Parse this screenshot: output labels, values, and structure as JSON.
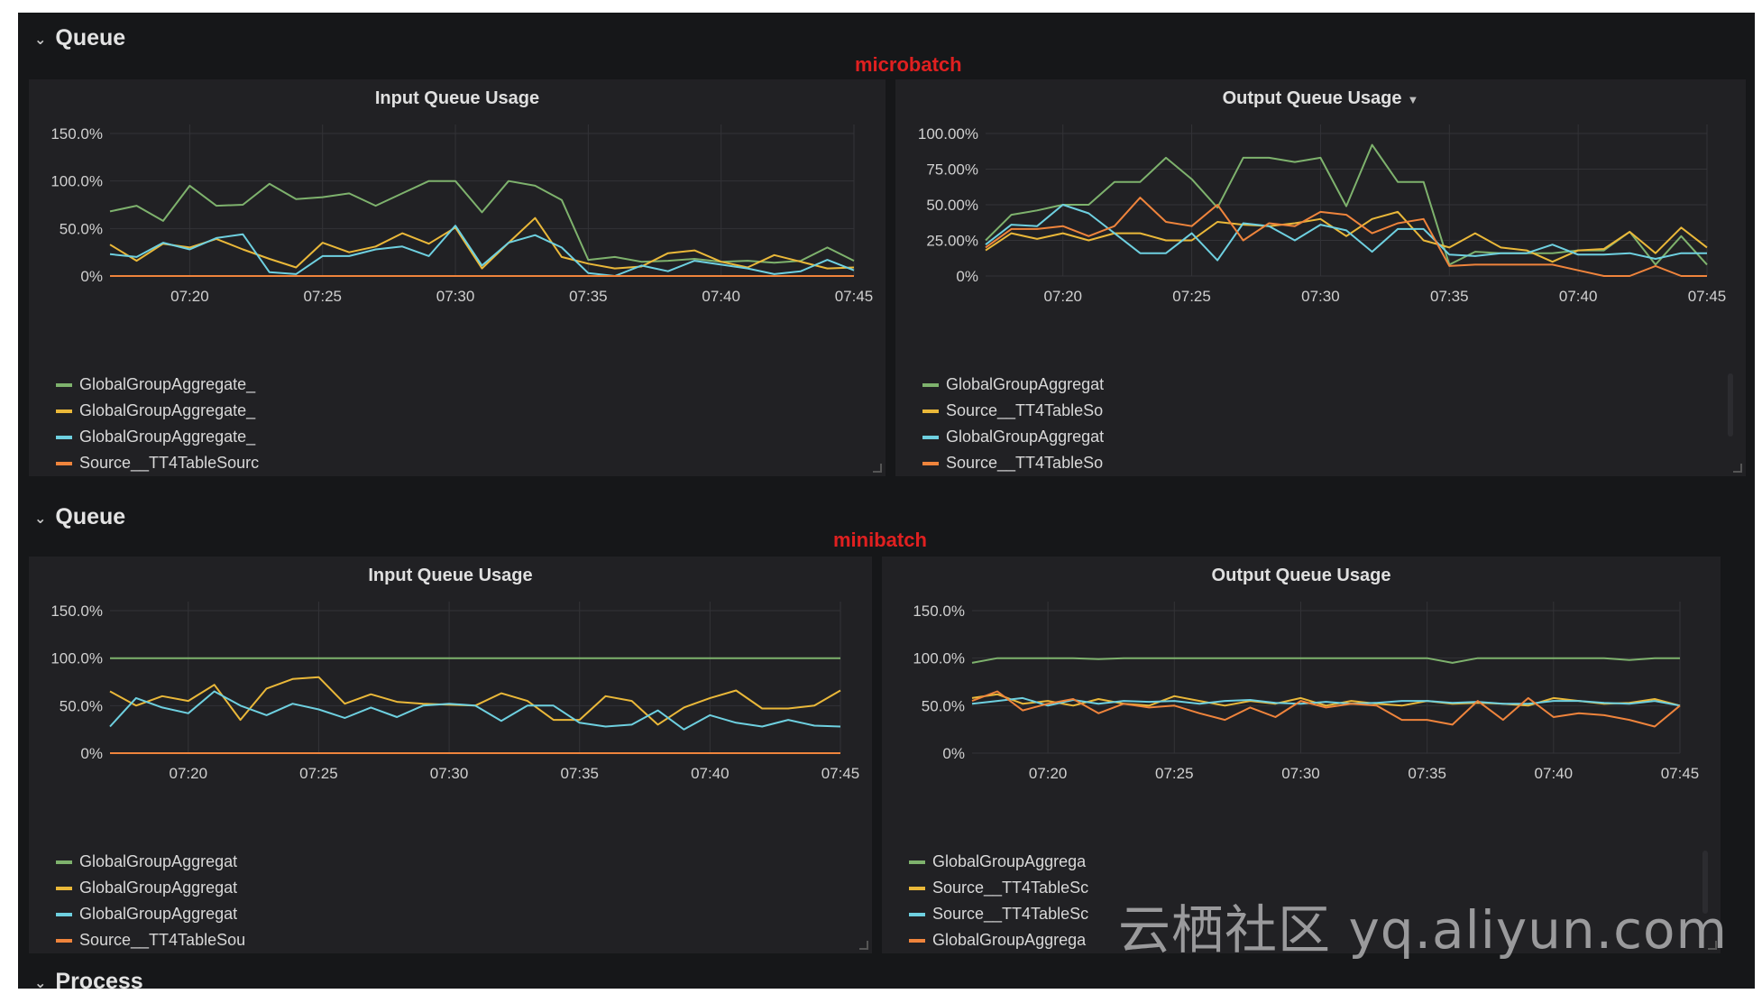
{
  "rows": [
    {
      "title": "Queue",
      "annotation": "microbatch"
    },
    {
      "title": "Queue",
      "annotation": "minibatch"
    },
    {
      "title": "Process"
    }
  ],
  "colors": {
    "green": "#7eb26d",
    "yellow": "#eab839",
    "blue": "#6ed0e0",
    "orange": "#ef843c",
    "background": "#161719",
    "panel": "#212124",
    "annotation": "#e02020"
  },
  "watermark": "云栖社区 yq.aliyun.com",
  "icons": {
    "collapse": "chevron-down-icon",
    "panel_menu": "caret-down-icon"
  },
  "panels": [
    {
      "title": "Input Queue Usage",
      "has_menu_caret": false,
      "legend": [
        {
          "label": "GlobalGroupAggregate_",
          "color": "#7eb26d"
        },
        {
          "label": "GlobalGroupAggregate_",
          "color": "#eab839"
        },
        {
          "label": "GlobalGroupAggregate_",
          "color": "#6ed0e0"
        },
        {
          "label": "Source__TT4TableSourc",
          "color": "#ef843c"
        }
      ]
    },
    {
      "title": "Output Queue Usage",
      "has_menu_caret": true,
      "legend": [
        {
          "label": "GlobalGroupAggregat",
          "color": "#7eb26d"
        },
        {
          "label": "Source__TT4TableSo",
          "color": "#eab839"
        },
        {
          "label": "GlobalGroupAggregat",
          "color": "#6ed0e0"
        },
        {
          "label": "Source__TT4TableSo",
          "color": "#ef843c"
        }
      ]
    },
    {
      "title": "Input Queue Usage",
      "has_menu_caret": false,
      "legend": [
        {
          "label": "GlobalGroupAggregat",
          "color": "#7eb26d"
        },
        {
          "label": "GlobalGroupAggregat",
          "color": "#eab839"
        },
        {
          "label": "GlobalGroupAggregat",
          "color": "#6ed0e0"
        },
        {
          "label": "Source__TT4TableSou",
          "color": "#ef843c"
        }
      ]
    },
    {
      "title": "Output Queue Usage",
      "has_menu_caret": false,
      "legend": [
        {
          "label": "GlobalGroupAggrega",
          "color": "#7eb26d"
        },
        {
          "label": "Source__TT4TableSc",
          "color": "#eab839"
        },
        {
          "label": "Source__TT4TableSc",
          "color": "#6ed0e0"
        },
        {
          "label": "GlobalGroupAggrega",
          "color": "#ef843c"
        }
      ]
    }
  ],
  "chart_data": [
    {
      "type": "line",
      "title": "Input Queue Usage",
      "x": [
        "07:17",
        "07:18",
        "07:19",
        "07:20",
        "07:21",
        "07:22",
        "07:23",
        "07:24",
        "07:25",
        "07:26",
        "07:27",
        "07:28",
        "07:29",
        "07:30",
        "07:31",
        "07:32",
        "07:33",
        "07:34",
        "07:35",
        "07:36",
        "07:37",
        "07:38",
        "07:39",
        "07:40",
        "07:41",
        "07:42",
        "07:43",
        "07:44",
        "07:45"
      ],
      "xticks": [
        "07:20",
        "07:25",
        "07:30",
        "07:35",
        "07:40",
        "07:45"
      ],
      "yticks": [
        "0%",
        "50.0%",
        "100.0%",
        "150.0%"
      ],
      "ylim": [
        0,
        150
      ],
      "grid": true,
      "legend_position": "bottom-left",
      "series": [
        {
          "name": "GlobalGroupAggregate_",
          "color": "#7eb26d",
          "values": [
            68,
            74,
            58,
            95,
            74,
            75,
            97,
            81,
            83,
            87,
            74,
            87,
            100,
            100,
            67,
            100,
            95,
            80,
            17,
            20,
            15,
            16,
            18,
            15,
            16,
            14,
            16,
            30,
            16
          ]
        },
        {
          "name": "GlobalGroupAggregate_",
          "color": "#eab839",
          "values": [
            33,
            16,
            34,
            30,
            39,
            28,
            18,
            9,
            35,
            25,
            31,
            45,
            34,
            51,
            8,
            35,
            61,
            20,
            13,
            8,
            10,
            24,
            27,
            15,
            9,
            22,
            15,
            8,
            9
          ]
        },
        {
          "name": "GlobalGroupAggregate_",
          "color": "#6ed0e0",
          "values": [
            23,
            20,
            35,
            28,
            40,
            44,
            4,
            2,
            21,
            21,
            28,
            31,
            21,
            53,
            11,
            35,
            43,
            30,
            3,
            0,
            11,
            5,
            16,
            12,
            8,
            2,
            5,
            17,
            6
          ]
        },
        {
          "name": "Source__TT4TableSourc",
          "color": "#ef843c",
          "values": [
            0,
            0,
            0,
            0,
            0,
            0,
            0,
            0,
            0,
            0,
            0,
            0,
            0,
            0,
            0,
            0,
            0,
            0,
            0,
            0,
            0,
            0,
            0,
            0,
            0,
            0,
            0,
            0,
            0
          ]
        }
      ]
    },
    {
      "type": "line",
      "title": "Output Queue Usage",
      "x": [
        "07:17",
        "07:18",
        "07:19",
        "07:20",
        "07:21",
        "07:22",
        "07:23",
        "07:24",
        "07:25",
        "07:26",
        "07:27",
        "07:28",
        "07:29",
        "07:30",
        "07:31",
        "07:32",
        "07:33",
        "07:34",
        "07:35",
        "07:36",
        "07:37",
        "07:38",
        "07:39",
        "07:40",
        "07:41",
        "07:42",
        "07:43",
        "07:44",
        "07:45"
      ],
      "xticks": [
        "07:20",
        "07:25",
        "07:30",
        "07:35",
        "07:40",
        "07:45"
      ],
      "yticks": [
        "0%",
        "25.00%",
        "50.00%",
        "75.00%",
        "100.00%"
      ],
      "ylim": [
        0,
        100
      ],
      "grid": true,
      "legend_position": "bottom-left",
      "series": [
        {
          "name": "GlobalGroupAggregat",
          "color": "#7eb26d",
          "values": [
            25,
            43,
            46,
            50,
            50,
            66,
            66,
            83,
            68,
            48,
            83,
            83,
            80,
            83,
            49,
            92,
            66,
            66,
            8,
            17,
            16,
            16,
            16,
            18,
            18,
            31,
            8,
            28,
            8
          ]
        },
        {
          "name": "Source__TT4TableSo",
          "color": "#eab839",
          "values": [
            18,
            30,
            26,
            30,
            25,
            30,
            30,
            25,
            25,
            38,
            36,
            35,
            37,
            40,
            28,
            40,
            45,
            25,
            20,
            30,
            20,
            18,
            10,
            18,
            19,
            31,
            16,
            34,
            20
          ]
        },
        {
          "name": "GlobalGroupAggregat",
          "color": "#6ed0e0",
          "values": [
            22,
            36,
            35,
            50,
            44,
            30,
            16,
            16,
            30,
            11,
            37,
            35,
            25,
            36,
            32,
            17,
            33,
            33,
            15,
            14,
            16,
            16,
            22,
            15,
            15,
            16,
            12,
            16,
            16
          ]
        },
        {
          "name": "Source__TT4TableSo",
          "color": "#ef843c",
          "values": [
            20,
            33,
            33,
            35,
            28,
            35,
            55,
            38,
            35,
            50,
            25,
            37,
            35,
            45,
            43,
            30,
            37,
            40,
            7,
            8,
            8,
            8,
            8,
            4,
            0,
            0,
            7,
            0,
            0
          ]
        }
      ]
    },
    {
      "type": "line",
      "title": "Input Queue Usage",
      "x": [
        "07:17",
        "07:18",
        "07:19",
        "07:20",
        "07:21",
        "07:22",
        "07:23",
        "07:24",
        "07:25",
        "07:26",
        "07:27",
        "07:28",
        "07:29",
        "07:30",
        "07:31",
        "07:32",
        "07:33",
        "07:34",
        "07:35",
        "07:36",
        "07:37",
        "07:38",
        "07:39",
        "07:40",
        "07:41",
        "07:42",
        "07:43",
        "07:44",
        "07:45"
      ],
      "xticks": [
        "07:20",
        "07:25",
        "07:30",
        "07:35",
        "07:40",
        "07:45"
      ],
      "yticks": [
        "0%",
        "50.0%",
        "100.0%",
        "150.0%"
      ],
      "ylim": [
        0,
        150
      ],
      "grid": true,
      "legend_position": "bottom-left",
      "series": [
        {
          "name": "GlobalGroupAggregat",
          "color": "#7eb26d",
          "values": [
            100,
            100,
            100,
            100,
            100,
            100,
            100,
            100,
            100,
            100,
            100,
            100,
            100,
            100,
            100,
            100,
            100,
            100,
            100,
            100,
            100,
            100,
            100,
            100,
            100,
            100,
            100,
            100,
            100
          ]
        },
        {
          "name": "GlobalGroupAggregat",
          "color": "#eab839",
          "values": [
            65,
            50,
            60,
            55,
            72,
            35,
            68,
            78,
            80,
            52,
            62,
            54,
            52,
            51,
            50,
            63,
            55,
            35,
            35,
            60,
            55,
            30,
            48,
            58,
            66,
            47,
            47,
            50,
            66
          ]
        },
        {
          "name": "GlobalGroupAggregat",
          "color": "#6ed0e0",
          "values": [
            28,
            58,
            48,
            42,
            65,
            50,
            40,
            52,
            46,
            37,
            48,
            38,
            50,
            52,
            50,
            34,
            50,
            50,
            32,
            28,
            30,
            45,
            25,
            40,
            32,
            28,
            35,
            29,
            28
          ]
        },
        {
          "name": "Source__TT4TableSou",
          "color": "#ef843c",
          "values": [
            0,
            0,
            0,
            0,
            0,
            0,
            0,
            0,
            0,
            0,
            0,
            0,
            0,
            0,
            0,
            0,
            0,
            0,
            0,
            0,
            0,
            0,
            0,
            0,
            0,
            0,
            0,
            0,
            0
          ]
        }
      ]
    },
    {
      "type": "line",
      "title": "Output Queue Usage",
      "x": [
        "07:17",
        "07:18",
        "07:19",
        "07:20",
        "07:21",
        "07:22",
        "07:23",
        "07:24",
        "07:25",
        "07:26",
        "07:27",
        "07:28",
        "07:29",
        "07:30",
        "07:31",
        "07:32",
        "07:33",
        "07:34",
        "07:35",
        "07:36",
        "07:37",
        "07:38",
        "07:39",
        "07:40",
        "07:41",
        "07:42",
        "07:43",
        "07:44",
        "07:45"
      ],
      "xticks": [
        "07:20",
        "07:25",
        "07:30",
        "07:35",
        "07:40",
        "07:45"
      ],
      "yticks": [
        "0%",
        "50.0%",
        "100.0%",
        "150.0%"
      ],
      "ylim": [
        0,
        150
      ],
      "grid": true,
      "legend_position": "bottom-left",
      "series": [
        {
          "name": "GlobalGroupAggrega",
          "color": "#7eb26d",
          "values": [
            95,
            100,
            100,
            100,
            100,
            99,
            100,
            100,
            100,
            100,
            100,
            100,
            100,
            100,
            100,
            100,
            100,
            100,
            100,
            95,
            100,
            100,
            100,
            100,
            100,
            100,
            98,
            100,
            100
          ]
        },
        {
          "name": "Source__TT4TableSc",
          "color": "#eab839",
          "values": [
            58,
            62,
            52,
            55,
            50,
            57,
            52,
            50,
            60,
            55,
            50,
            55,
            52,
            58,
            50,
            55,
            52,
            50,
            55,
            52,
            53,
            52,
            50,
            58,
            55,
            52,
            53,
            57,
            50
          ]
        },
        {
          "name": "Source__TT4TableSc",
          "color": "#6ed0e0",
          "values": [
            52,
            55,
            58,
            50,
            56,
            52,
            55,
            54,
            55,
            52,
            55,
            56,
            53,
            52,
            54,
            52,
            53,
            55,
            55,
            53,
            54,
            52,
            52,
            55,
            55,
            53,
            52,
            55,
            50
          ]
        },
        {
          "name": "GlobalGroupAggrega",
          "color": "#ef843c",
          "values": [
            55,
            65,
            45,
            52,
            57,
            42,
            52,
            48,
            50,
            42,
            35,
            48,
            38,
            55,
            48,
            52,
            50,
            35,
            35,
            30,
            55,
            35,
            58,
            38,
            42,
            40,
            35,
            28,
            50
          ]
        }
      ]
    }
  ]
}
